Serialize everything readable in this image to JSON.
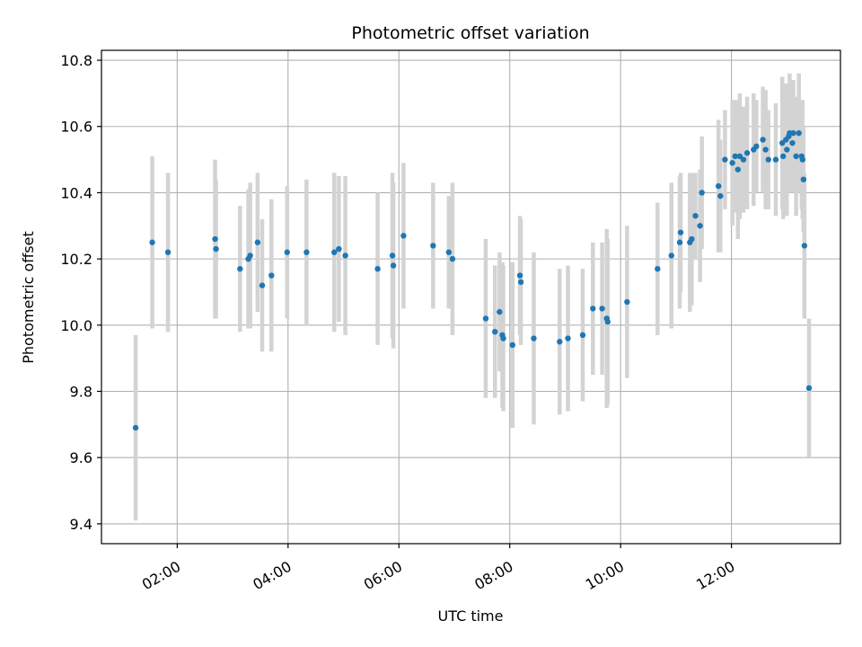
{
  "chart_data": {
    "type": "scatter",
    "title": "Photometric offset variation",
    "xlabel": "UTC time",
    "ylabel": "Photometric offset",
    "x_ticks": [
      "02:00",
      "04:00",
      "06:00",
      "08:00",
      "10:00",
      "12:00"
    ],
    "x_tick_values": [
      "02:00",
      "04:00",
      "06:00",
      "08:00",
      "10:00",
      "12:00"
    ],
    "y_ticks": [
      "9.4",
      "9.6",
      "9.8",
      "10.0",
      "10.2",
      "10.4",
      "10.6",
      "10.8"
    ],
    "xlim": [
      "00:38",
      "13:58"
    ],
    "ylim": [
      9.34,
      10.83
    ],
    "grid": true,
    "colors": {
      "points": "#1f77b4",
      "errorbars": "#d3d3d3",
      "grid": "#b0b0b0"
    },
    "series": [
      {
        "x": [
          "01:15",
          "01:33",
          "01:50",
          "02:41",
          "02:42",
          "03:08",
          "03:17",
          "03:19",
          "03:27",
          "03:32",
          "03:42",
          "03:59",
          "04:20",
          "04:50",
          "04:55",
          "05:02",
          "05:37",
          "05:53",
          "05:54",
          "06:05",
          "06:37",
          "06:54",
          "06:58",
          "07:34",
          "07:44",
          "07:49",
          "07:52",
          "07:53",
          "08:03",
          "08:11",
          "08:12",
          "08:26",
          "08:54",
          "09:03",
          "09:19",
          "09:30",
          "09:40",
          "09:45",
          "09:46",
          "10:07",
          "10:40",
          "10:55",
          "11:04",
          "11:05",
          "11:15",
          "11:17",
          "11:21",
          "11:26",
          "11:28",
          "11:46",
          "11:48",
          "11:53",
          "12:01",
          "12:04",
          "12:07",
          "12:09",
          "12:13",
          "12:17",
          "12:24",
          "12:27",
          "12:34",
          "12:37",
          "12:40",
          "12:48",
          "12:55",
          "12:56",
          "12:59",
          "13:00",
          "13:02",
          "13:03",
          "13:06",
          "13:07",
          "13:10",
          "13:13",
          "13:16",
          "13:17",
          "13:18",
          "13:19",
          "13:24"
        ],
        "y": [
          9.69,
          10.25,
          10.22,
          10.26,
          10.23,
          10.17,
          10.2,
          10.21,
          10.25,
          10.12,
          10.15,
          10.22,
          10.22,
          10.22,
          10.23,
          10.21,
          10.17,
          10.21,
          10.18,
          10.27,
          10.24,
          10.22,
          10.2,
          10.02,
          9.98,
          10.04,
          9.97,
          9.96,
          9.94,
          10.15,
          10.13,
          9.96,
          9.95,
          9.96,
          9.97,
          10.05,
          10.05,
          10.02,
          10.01,
          10.07,
          10.17,
          10.21,
          10.25,
          10.28,
          10.25,
          10.26,
          10.33,
          10.3,
          10.4,
          10.42,
          10.39,
          10.5,
          10.49,
          10.51,
          10.47,
          10.51,
          10.5,
          10.52,
          10.53,
          10.54,
          10.56,
          10.53,
          10.5,
          10.5,
          10.55,
          10.51,
          10.56,
          10.53,
          10.57,
          10.58,
          10.55,
          10.58,
          10.51,
          10.58,
          10.51,
          10.5,
          10.44,
          10.24,
          9.81
        ],
        "yerr": [
          0.28,
          0.26,
          0.24,
          0.24,
          0.21,
          0.19,
          0.21,
          0.22,
          0.21,
          0.2,
          0.23,
          0.2,
          0.22,
          0.24,
          0.22,
          0.24,
          0.23,
          0.25,
          0.25,
          0.22,
          0.19,
          0.17,
          0.23,
          0.24,
          0.2,
          0.18,
          0.22,
          0.22,
          0.25,
          0.18,
          0.19,
          0.26,
          0.22,
          0.22,
          0.2,
          0.2,
          0.2,
          0.27,
          0.25,
          0.23,
          0.2,
          0.22,
          0.2,
          0.18,
          0.21,
          0.2,
          0.13,
          0.17,
          0.17,
          0.2,
          0.17,
          0.15,
          0.19,
          0.17,
          0.21,
          0.19,
          0.16,
          0.17,
          0.17,
          0.14,
          0.16,
          0.18,
          0.15,
          0.17,
          0.2,
          0.19,
          0.17,
          0.2,
          0.16,
          0.18,
          0.15,
          0.16,
          0.18,
          0.18,
          0.16,
          0.18,
          0.16,
          0.22,
          0.21
        ]
      }
    ]
  }
}
